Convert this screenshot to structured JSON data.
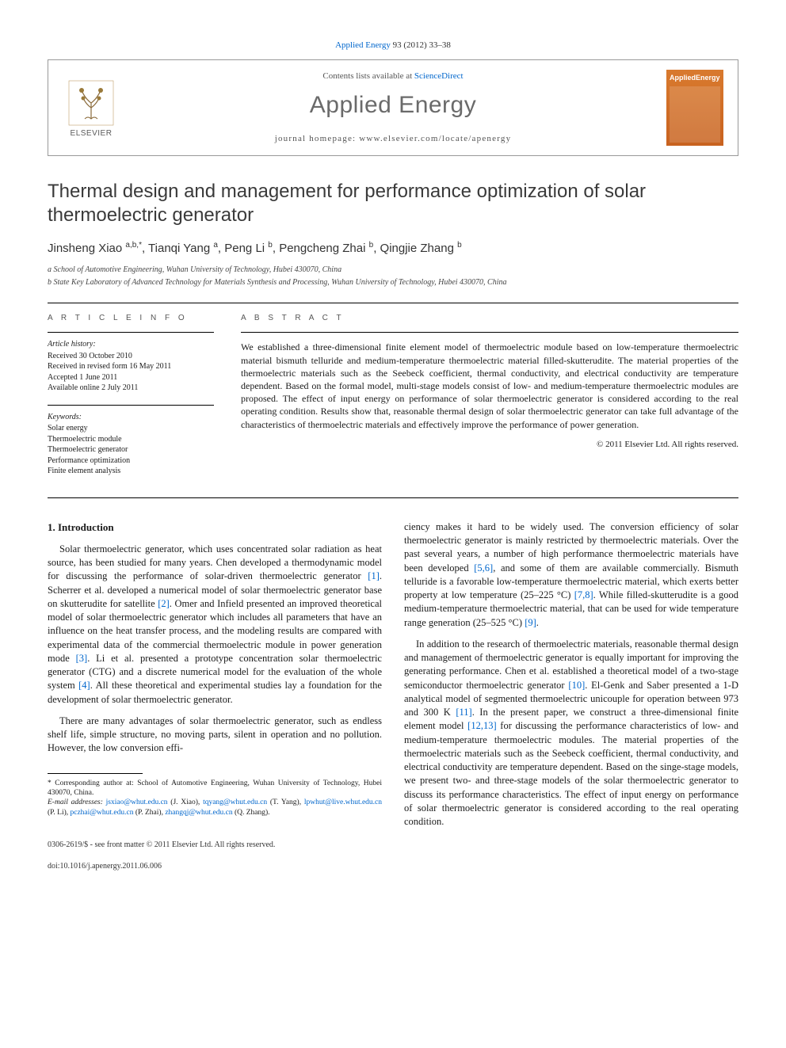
{
  "top": {
    "citation_prefix": "Applied Energy",
    "citation_vol": "93 (2012) 33–38"
  },
  "header": {
    "contents_prefix": "Contents lists available at",
    "contents_link": "ScienceDirect",
    "journal": "Applied Energy",
    "homepage_label": "journal homepage: www.elsevier.com/locate/apenergy",
    "publisher": "ELSEVIER",
    "cover_label": "AppliedEnergy"
  },
  "title": "Thermal design and management for performance optimization of solar thermoelectric generator",
  "authors_html": "Jinsheng Xiao <sup>a,b,*</sup>, Tianqi Yang <sup>a</sup>, Peng Li <sup>b</sup>, Pengcheng Zhai <sup>b</sup>, Qingjie Zhang <sup>b</sup>",
  "affiliations": {
    "a": "a School of Automotive Engineering, Wuhan University of Technology, Hubei 430070, China",
    "b": "b State Key Laboratory of Advanced Technology for Materials Synthesis and Processing, Wuhan University of Technology, Hubei 430070, China"
  },
  "info": {
    "label": "A R T I C L E   I N F O",
    "history_head": "Article history:",
    "history": [
      "Received 30 October 2010",
      "Received in revised form 16 May 2011",
      "Accepted 1 June 2011",
      "Available online 2 July 2011"
    ],
    "keywords_head": "Keywords:",
    "keywords": [
      "Solar energy",
      "Thermoelectric module",
      "Thermoelectric generator",
      "Performance optimization",
      "Finite element analysis"
    ]
  },
  "abstract": {
    "label": "A B S T R A C T",
    "text": "We established a three-dimensional finite element model of thermoelectric module based on low-temperature thermoelectric material bismuth telluride and medium-temperature thermoelectric material filled-skutterudite. The material properties of the thermoelectric materials such as the Seebeck coefficient, thermal conductivity, and electrical conductivity are temperature dependent. Based on the formal model, multi-stage models consist of low- and medium-temperature thermoelectric modules are proposed. The effect of input energy on performance of solar thermoelectric generator is considered according to the real operating condition. Results show that, reasonable thermal design of solar thermoelectric generator can take full advantage of the characteristics of thermoelectric materials and effectively improve the performance of power generation.",
    "copyright": "© 2011 Elsevier Ltd. All rights reserved."
  },
  "body": {
    "section_heading": "1. Introduction",
    "p1a": "Solar thermoelectric generator, which uses concentrated solar radiation as heat source, has been studied for many years. Chen developed a thermodynamic model for discussing the performance of solar-driven thermoelectric generator ",
    "r1": "[1]",
    "p1b": ". Scherrer et al. developed a numerical model of solar thermoelectric generator base on skutterudite for satellite ",
    "r2": "[2]",
    "p1c": ". Omer and Infield presented an improved theoretical model of solar thermoelectric generator which includes all parameters that have an influence on the heat transfer process, and the modeling results are compared with experimental data of the commercial thermoelectric module in power generation mode ",
    "r3": "[3]",
    "p1d": ". Li et al. presented a prototype concentration solar thermoelectric generator (CTG) and a discrete numerical model for the evaluation of the whole system ",
    "r4": "[4]",
    "p1e": ". All these theoretical and experimental studies lay a foundation for the development of solar thermoelectric generator.",
    "p2": "There are many advantages of solar thermoelectric generator, such as endless shelf life, simple structure, no moving parts, silent in operation and no pollution. However, the low conversion effi-",
    "p3a": "ciency makes it hard to be widely used. The conversion efficiency of solar thermoelectric generator is mainly restricted by thermoelectric materials. Over the past several years, a number of high performance thermoelectric materials have been developed ",
    "r56": "[5,6]",
    "p3b": ", and some of them are available commercially. Bismuth telluride is a favorable low-temperature thermoelectric material, which exerts better property at low temperature (25–225 °C) ",
    "r78": "[7,8]",
    "p3c": ". While filled-skutterudite is a good medium-temperature thermoelectric material, that can be used for wide temperature range generation (25–525 °C) ",
    "r9": "[9]",
    "p3d": ".",
    "p4a": "In addition to the research of thermoelectric materials, reasonable thermal design and management of thermoelectric generator is equally important for improving the generating performance. Chen et al. established a theoretical model of a two-stage semiconductor thermoelectric generator ",
    "r10": "[10]",
    "p4b": ". El-Genk and Saber presented a 1-D analytical model of segmented thermoelectric unicouple for operation between 973 and 300 K ",
    "r11": "[11]",
    "p4c": ". In the present paper, we construct a three-dimensional finite element model ",
    "r1213": "[12,13]",
    "p4d": " for discussing the performance characteristics of low- and medium-temperature thermoelectric modules. The material properties of the thermoelectric materials such as the Seebeck coefficient, thermal conductivity, and electrical conductivity are temperature dependent. Based on the singe-stage models, we present two- and three-stage models of the solar thermoelectric generator to discuss its performance characteristics. The effect of input energy on performance of solar thermoelectric generator is considered according to the real operating condition."
  },
  "footnote": {
    "corr": "* Corresponding author at: School of Automotive Engineering, Wuhan University of Technology, Hubei 430070, China.",
    "emails_label": "E-mail addresses:",
    "emails": "jsxiao@whut.edu.cn (J. Xiao), tqyang@whut.edu.cn (T. Yang), lpwhut@live.whut.edu.cn (P. Li), pczhai@whut.edu.cn (P. Zhai), zhangqj@whut.edu.cn (Q. Zhang)."
  },
  "bottom": {
    "line1": "0306-2619/$ - see front matter © 2011 Elsevier Ltd. All rights reserved.",
    "line2": "doi:10.1016/j.apenergy.2011.06.006"
  },
  "colors": {
    "link": "#0066cc",
    "elsevier_orange": "#e6731a",
    "journal_gray": "#6a6a6a"
  }
}
